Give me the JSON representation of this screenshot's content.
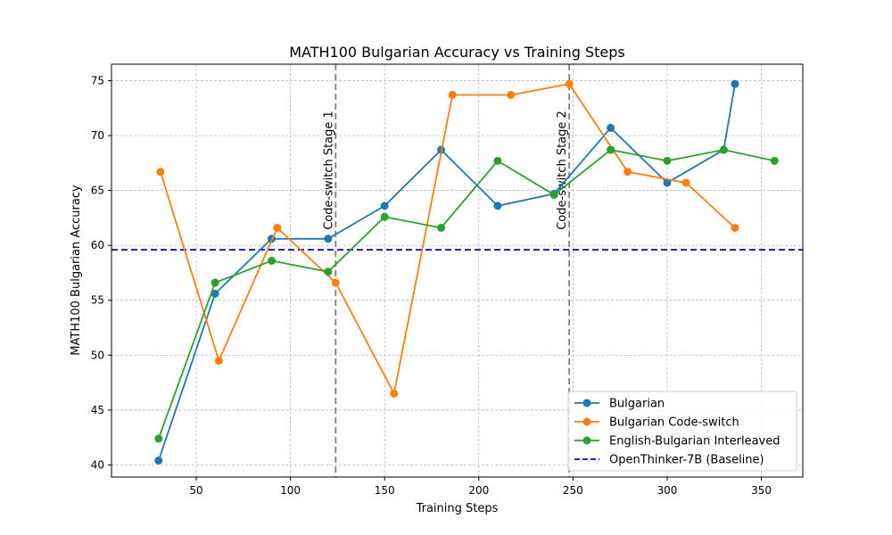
{
  "chart_data": {
    "type": "line",
    "title": "MATH100 Bulgarian Accuracy vs Training Steps",
    "xlabel": "Training Steps",
    "ylabel": "MATH100 Bulgarian Accuracy",
    "xlim": [
      5,
      372
    ],
    "ylim": [
      38.9,
      76.5
    ],
    "xticks": [
      50,
      100,
      150,
      200,
      250,
      300,
      350
    ],
    "yticks": [
      40,
      45,
      50,
      55,
      60,
      65,
      70,
      75
    ],
    "grid": true,
    "legend_position": "lower-right",
    "series": [
      {
        "name": "Bulgarian",
        "color": "#1f77b4",
        "x": [
          30,
          60,
          90,
          120,
          150,
          180,
          210,
          240,
          270,
          300,
          330,
          336
        ],
        "y": [
          40.4,
          55.6,
          60.6,
          60.6,
          63.6,
          68.7,
          63.6,
          64.7,
          70.7,
          65.7,
          68.7,
          74.7
        ]
      },
      {
        "name": "Bulgarian Code-switch",
        "color": "#ff7f0e",
        "x": [
          31,
          62,
          93,
          124,
          155,
          186,
          217,
          248,
          279,
          310,
          336
        ],
        "y": [
          66.7,
          49.5,
          61.6,
          56.6,
          46.5,
          73.7,
          73.7,
          74.7,
          66.7,
          65.7,
          61.6
        ]
      },
      {
        "name": "English-Bulgarian Interleaved",
        "color": "#2ca02c",
        "x": [
          30,
          60,
          90,
          120,
          150,
          180,
          210,
          240,
          270,
          300,
          330,
          357
        ],
        "y": [
          42.4,
          56.6,
          58.6,
          57.6,
          62.6,
          61.6,
          67.7,
          64.6,
          68.7,
          67.7,
          68.7,
          67.7
        ]
      }
    ],
    "baseline": {
      "name": "OpenThinker-7B (Baseline)",
      "value": 59.6,
      "color": "#0000cc"
    },
    "annotations": [
      {
        "label": "Code-switch Stage 1",
        "x": 124
      },
      {
        "label": "Code-switch Stage 2",
        "x": 248
      }
    ]
  }
}
